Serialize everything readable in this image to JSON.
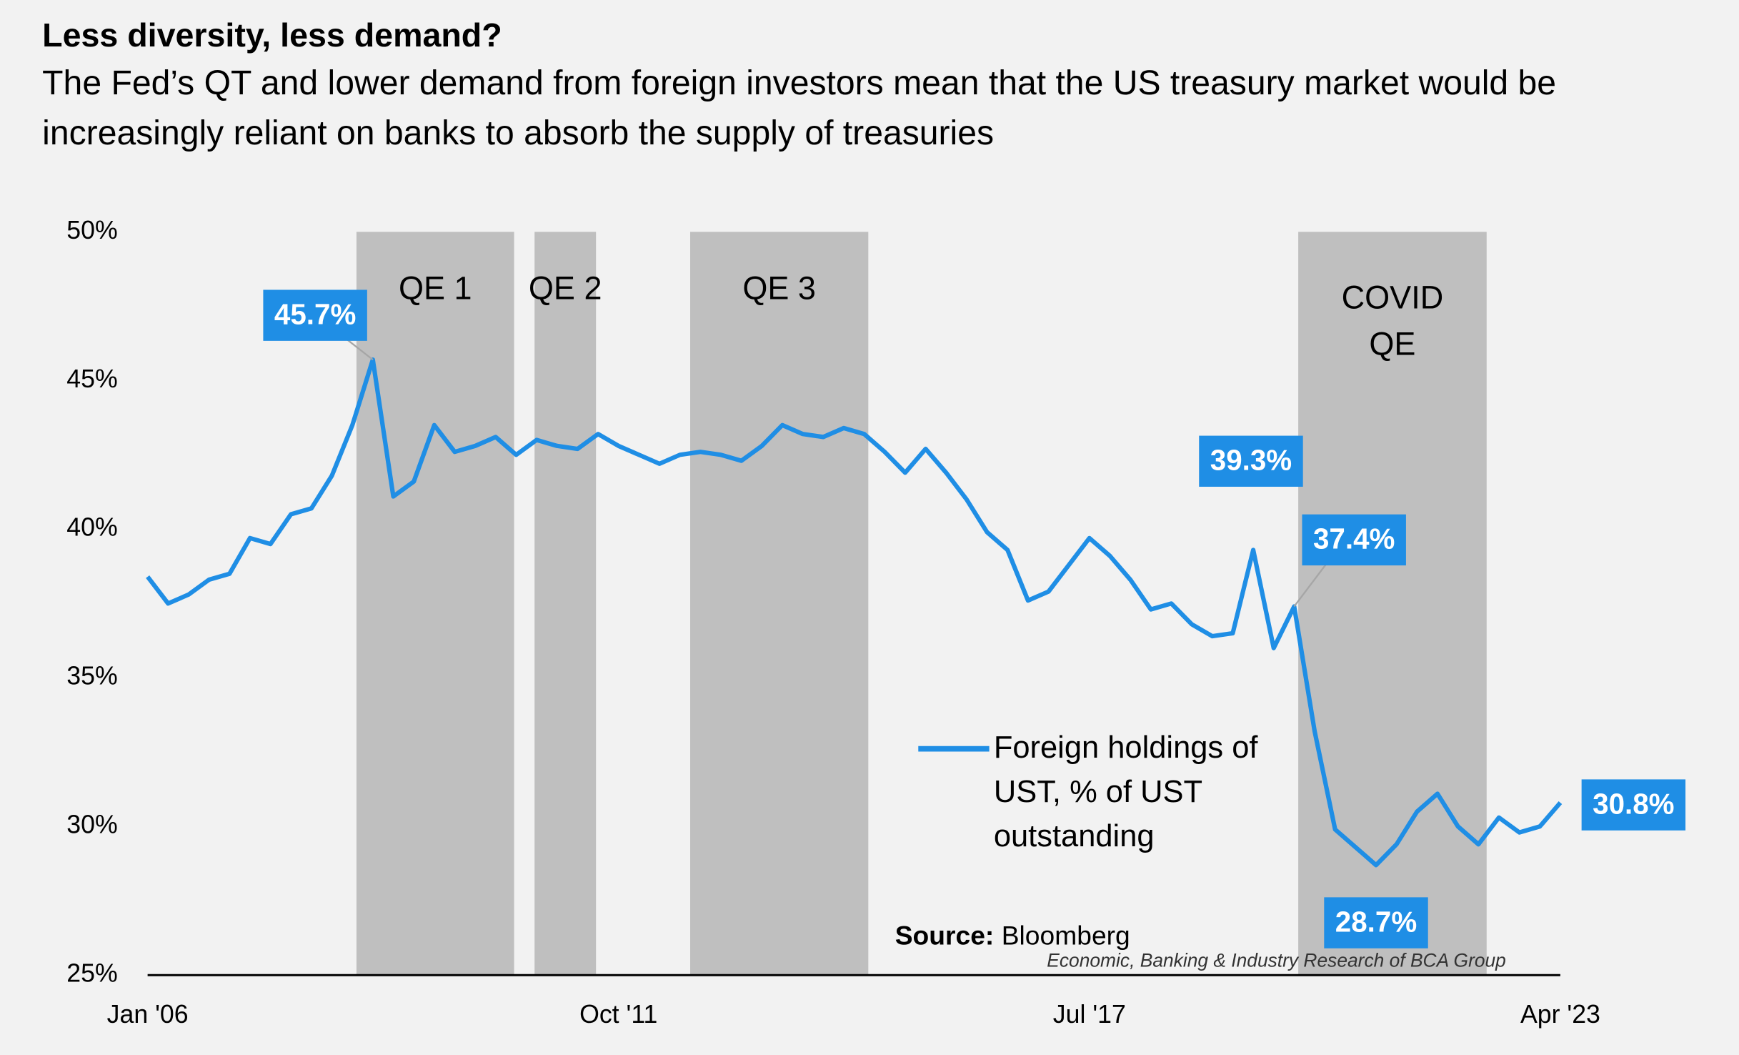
{
  "chart_data": {
    "type": "line",
    "title": "Less diversity, less demand?",
    "subtitle": "The Fed’s QT and lower demand from foreign investors mean that the US treasury market would be increasingly reliant on banks to absorb the supply of treasuries",
    "categories": [
      "Jan '06",
      null,
      null,
      null,
      null,
      null,
      null,
      null,
      null,
      null,
      null,
      null,
      null,
      null,
      null,
      null,
      null,
      null,
      null,
      null,
      null,
      null,
      null,
      "Oct '11",
      null,
      null,
      null,
      null,
      null,
      null,
      null,
      null,
      null,
      null,
      null,
      null,
      null,
      null,
      null,
      null,
      null,
      null,
      null,
      null,
      null,
      null,
      "Jul '17",
      null,
      null,
      null,
      null,
      null,
      null,
      null,
      null,
      null,
      null,
      null,
      null,
      null,
      null,
      null,
      null,
      null,
      null,
      null,
      null,
      null,
      null,
      "Apr '23"
    ],
    "series": [
      {
        "name": "Foreign holdings of UST, % of UST outstanding",
        "color": "#1f8ee5",
        "values": [
          38.4,
          37.5,
          37.8,
          38.3,
          38.5,
          39.7,
          39.5,
          40.5,
          40.7,
          41.8,
          43.5,
          45.7,
          41.1,
          41.6,
          43.5,
          42.6,
          42.8,
          43.1,
          42.5,
          43.0,
          42.8,
          42.7,
          43.2,
          42.8,
          42.5,
          42.2,
          42.5,
          42.6,
          42.5,
          42.3,
          42.8,
          43.5,
          43.2,
          43.1,
          43.4,
          43.2,
          42.6,
          41.9,
          42.7,
          41.9,
          41.0,
          39.9,
          39.3,
          37.6,
          37.9,
          38.8,
          39.7,
          39.1,
          38.3,
          37.3,
          37.5,
          36.8,
          36.4,
          36.5,
          39.3,
          36.0,
          37.4,
          33.2,
          29.9,
          29.3,
          28.7,
          29.4,
          30.5,
          31.1,
          30.0,
          29.4,
          30.3,
          29.8,
          30.0,
          30.8
        ],
        "value_labels": [
          null,
          null,
          null,
          null,
          null,
          null,
          null,
          null,
          null,
          null,
          null,
          "45.7%",
          null,
          null,
          null,
          null,
          null,
          null,
          null,
          null,
          null,
          null,
          null,
          null,
          null,
          null,
          null,
          null,
          null,
          null,
          null,
          null,
          null,
          null,
          null,
          null,
          null,
          null,
          null,
          null,
          null,
          null,
          null,
          null,
          null,
          null,
          null,
          null,
          null,
          null,
          null,
          null,
          null,
          null,
          "39.3%",
          null,
          "37.4%",
          null,
          null,
          null,
          "28.7%",
          null,
          null,
          null,
          null,
          null,
          null,
          null,
          null,
          "30.8%"
        ]
      }
    ],
    "regions": [
      {
        "label": "QE 1",
        "start": 10.2,
        "end": 17.9
      },
      {
        "label": "QE 2",
        "start": 18.9,
        "end": 21.9
      },
      {
        "label": "QE 3",
        "start": 26.5,
        "end": 35.2
      },
      {
        "label": "COVID QE",
        "start": 56.2,
        "end": 65.4
      }
    ],
    "region_color": "#bfbfbf",
    "ylim": [
      25,
      50
    ],
    "yticks": [
      {
        "value": 25,
        "label": "25%"
      },
      {
        "value": 30,
        "label": "30%"
      },
      {
        "value": 35,
        "label": "35%"
      },
      {
        "value": 40,
        "label": "40%"
      },
      {
        "value": 45,
        "label": "45%"
      },
      {
        "value": 50,
        "label": "50%"
      }
    ],
    "grid": false,
    "legend": "center-right",
    "source_label": "Source:",
    "source": "Bloomberg",
    "note": "Economic, Banking & Industry Research of BCA Group"
  }
}
